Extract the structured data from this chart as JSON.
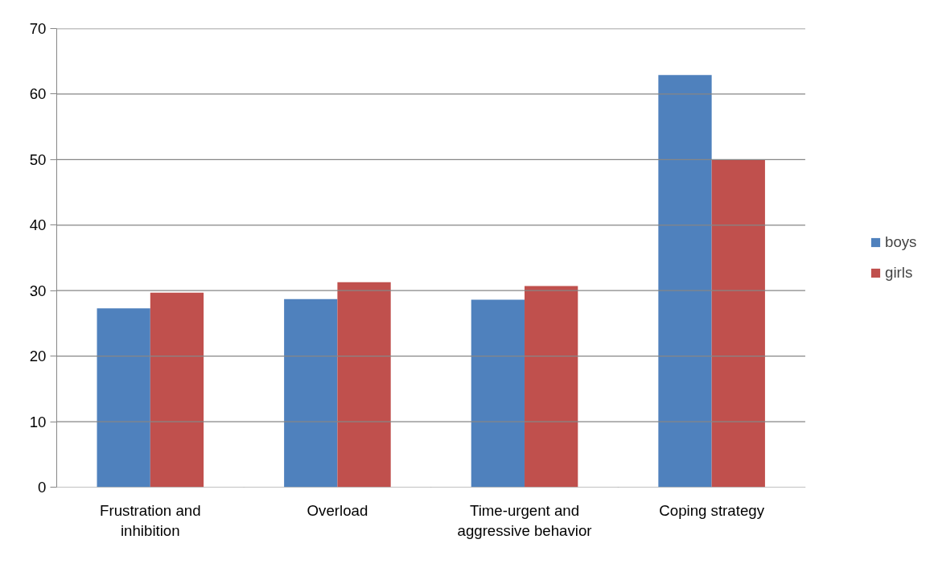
{
  "chart_data": {
    "type": "bar",
    "categories": [
      "Frustration and\ninhibition",
      "Overload",
      "Time-urgent and\naggressive behavior",
      "Coping strategy"
    ],
    "series": [
      {
        "name": "boys",
        "color": "#4f81bd",
        "values": [
          27.3,
          28.7,
          28.6,
          62.9
        ]
      },
      {
        "name": "girls",
        "color": "#c0504d",
        "values": [
          29.7,
          31.3,
          30.7,
          50.0
        ]
      }
    ],
    "ylim": [
      0,
      70
    ],
    "yticks": [
      0,
      10,
      20,
      30,
      40,
      50,
      60,
      70
    ],
    "grid": "y",
    "legend": "right"
  }
}
